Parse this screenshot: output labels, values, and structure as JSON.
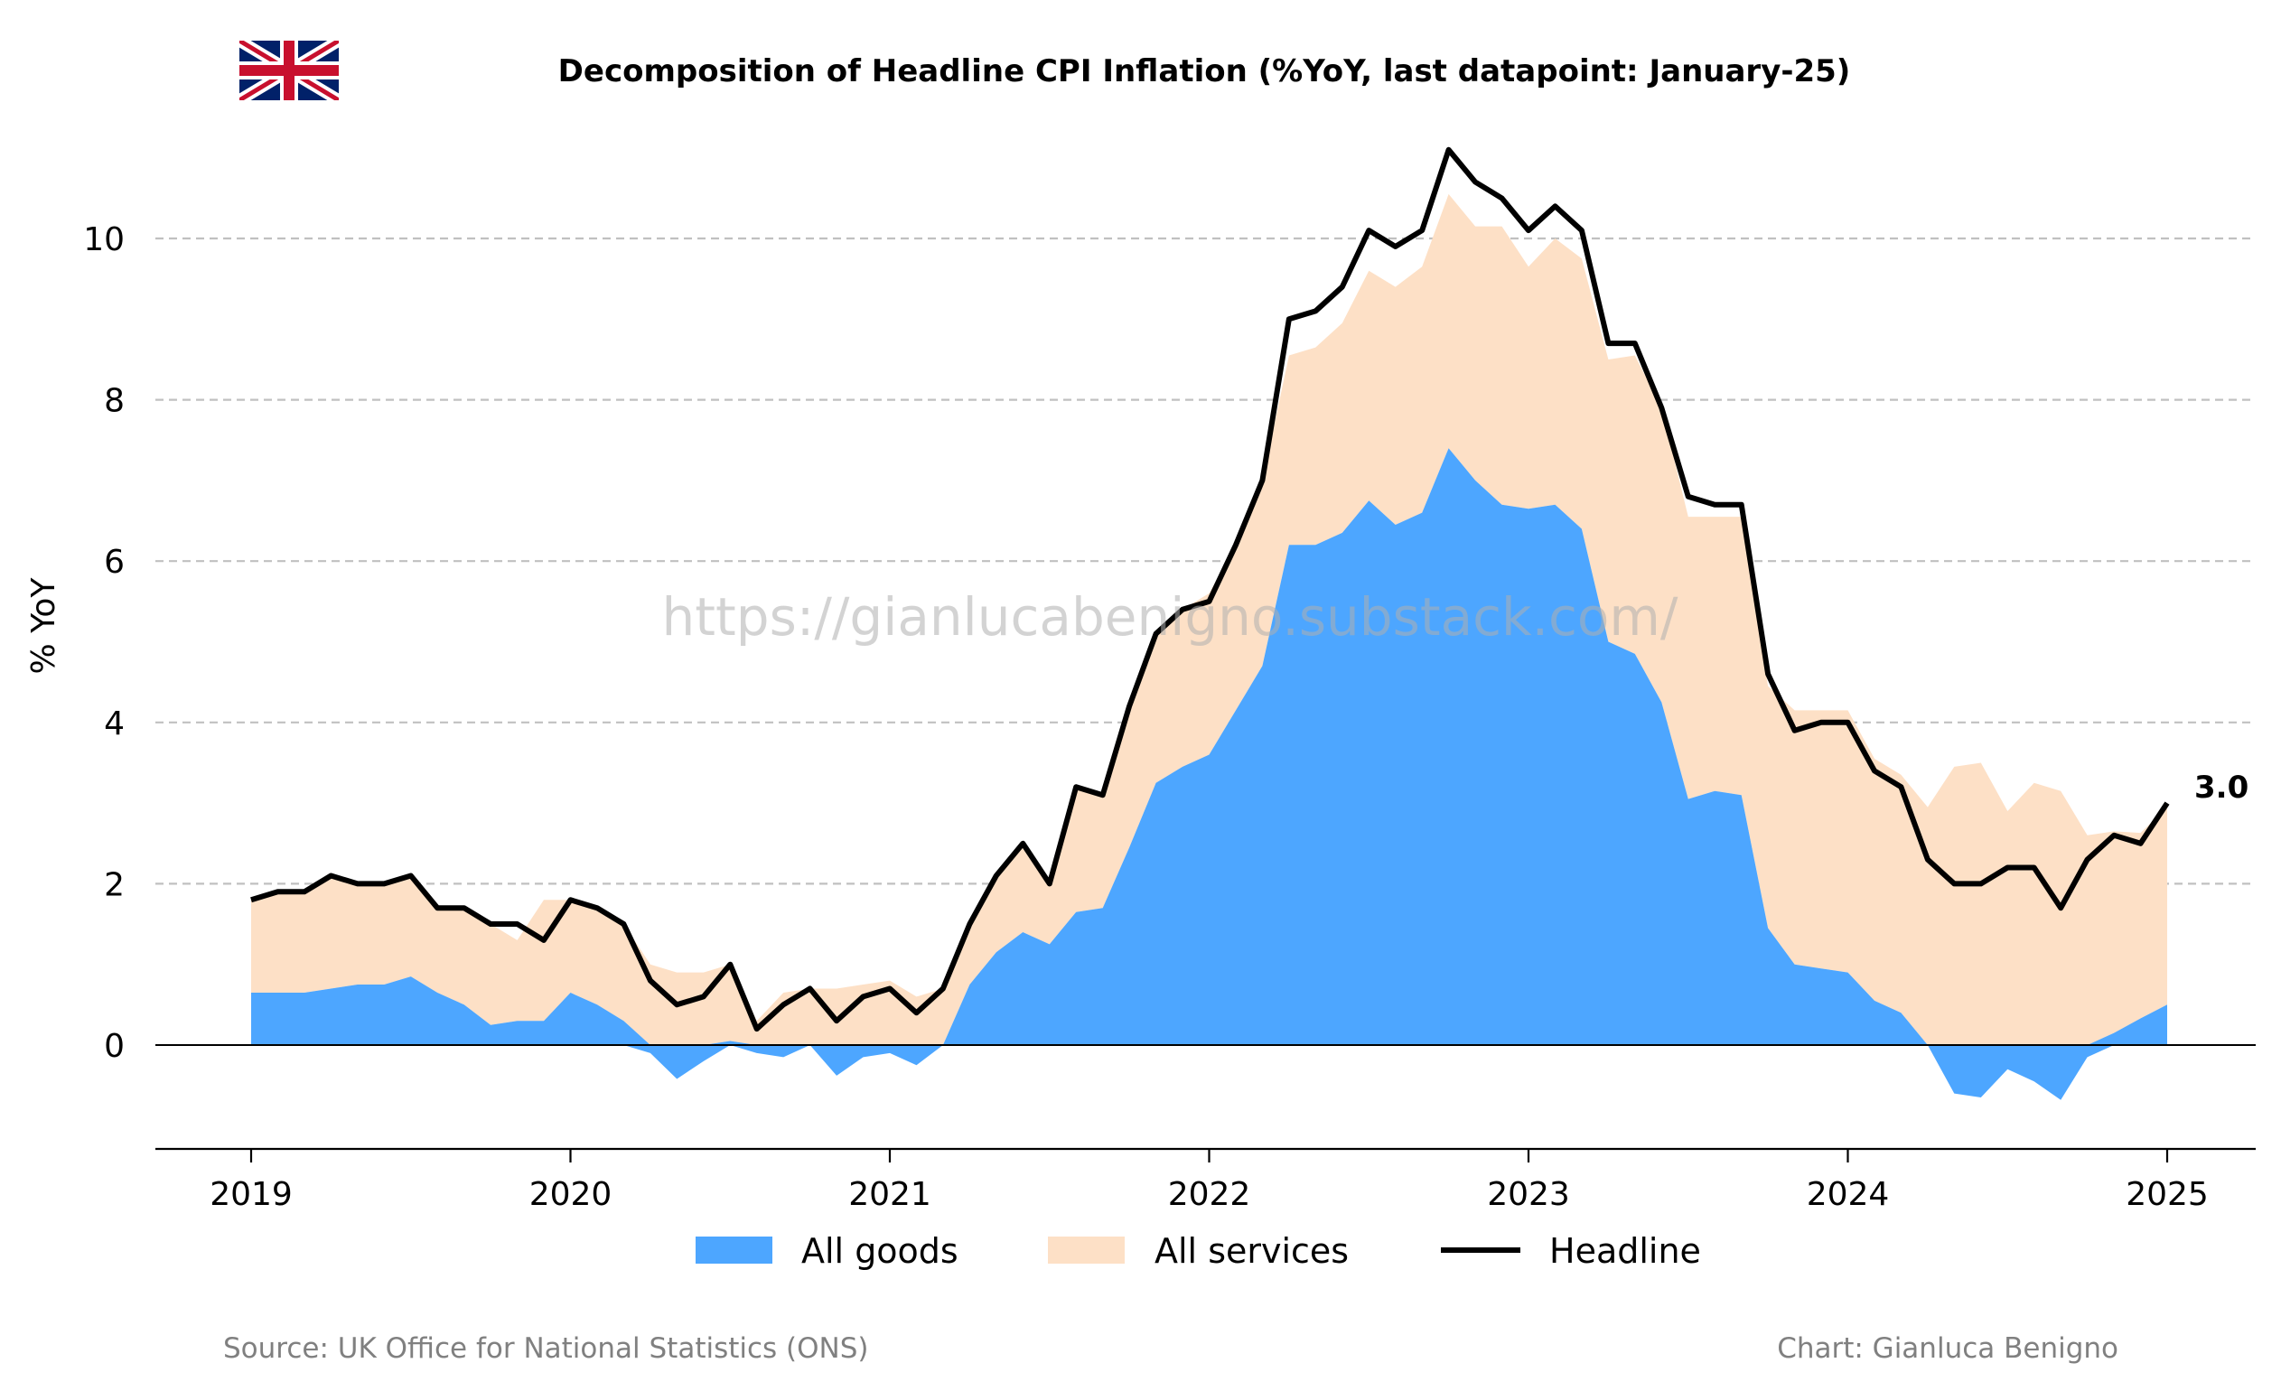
{
  "chart_data": {
    "type": "area",
    "title": "Decomposition of Headline CPI Inflation (%YoY, last datapoint: January-25)",
    "ylabel": "% YoY",
    "xlabel": "",
    "ylim": [
      -1.3,
      11.3
    ],
    "yticks": [
      0,
      2,
      4,
      6,
      8,
      10
    ],
    "xticks": [
      "2019",
      "2020",
      "2021",
      "2022",
      "2023",
      "2024",
      "2025"
    ],
    "grid": "horizontal dashed",
    "legend_position": "bottom-center",
    "start_month": "2019-01",
    "x": [
      "2019-01",
      "2019-02",
      "2019-03",
      "2019-04",
      "2019-05",
      "2019-06",
      "2019-07",
      "2019-08",
      "2019-09",
      "2019-10",
      "2019-11",
      "2019-12",
      "2020-01",
      "2020-02",
      "2020-03",
      "2020-04",
      "2020-05",
      "2020-06",
      "2020-07",
      "2020-08",
      "2020-09",
      "2020-10",
      "2020-11",
      "2020-12",
      "2021-01",
      "2021-02",
      "2021-03",
      "2021-04",
      "2021-05",
      "2021-06",
      "2021-07",
      "2021-08",
      "2021-09",
      "2021-10",
      "2021-11",
      "2021-12",
      "2022-01",
      "2022-02",
      "2022-03",
      "2022-04",
      "2022-05",
      "2022-06",
      "2022-07",
      "2022-08",
      "2022-09",
      "2022-10",
      "2022-11",
      "2022-12",
      "2023-01",
      "2023-02",
      "2023-03",
      "2023-04",
      "2023-05",
      "2023-06",
      "2023-07",
      "2023-08",
      "2023-09",
      "2023-10",
      "2023-11",
      "2023-12",
      "2024-01",
      "2024-02",
      "2024-03",
      "2024-04",
      "2024-05",
      "2024-06",
      "2024-07",
      "2024-08",
      "2024-09",
      "2024-10",
      "2024-11",
      "2024-12",
      "2025-01"
    ],
    "series": [
      {
        "name": "All goods",
        "color": "#4da6ff",
        "values": [
          0.65,
          0.65,
          0.65,
          0.7,
          0.75,
          0.75,
          0.85,
          0.65,
          0.5,
          0.25,
          0.3,
          0.3,
          0.65,
          0.5,
          0.3,
          -0.1,
          -0.42,
          -0.2,
          0.05,
          -0.1,
          -0.15,
          0.0,
          -0.38,
          -0.15,
          -0.1,
          -0.25,
          0.0,
          0.75,
          1.15,
          1.4,
          1.25,
          1.65,
          1.7,
          2.45,
          3.25,
          3.45,
          3.6,
          4.15,
          4.7,
          6.2,
          6.2,
          6.35,
          6.75,
          6.45,
          6.6,
          7.4,
          7.0,
          6.7,
          6.65,
          6.7,
          6.4,
          5.0,
          4.85,
          4.25,
          3.05,
          3.15,
          3.1,
          1.45,
          1.0,
          0.95,
          0.9,
          0.55,
          0.4,
          0.0,
          -0.6,
          -0.65,
          -0.3,
          -0.45,
          -0.68,
          -0.15,
          0.15,
          0.33,
          0.5
        ]
      },
      {
        "name": "All services",
        "color": "#fde0c6",
        "values": [
          1.15,
          1.25,
          1.25,
          1.4,
          1.25,
          1.25,
          1.25,
          1.05,
          1.2,
          1.25,
          1.0,
          1.5,
          1.15,
          1.2,
          1.2,
          1.0,
          0.9,
          0.9,
          0.95,
          0.3,
          0.65,
          0.7,
          0.7,
          0.75,
          0.8,
          0.6,
          0.7,
          0.75,
          0.95,
          1.1,
          0.75,
          1.55,
          1.4,
          1.7,
          1.85,
          1.95,
          2.0,
          2.05,
          2.3,
          2.35,
          2.45,
          2.6,
          2.85,
          2.95,
          3.05,
          3.15,
          3.15,
          3.45,
          3.0,
          3.3,
          3.35,
          3.5,
          3.7,
          3.65,
          3.5,
          3.4,
          3.45,
          3.0,
          3.15,
          3.2,
          3.25,
          3.0,
          2.95,
          2.95,
          3.45,
          3.5,
          2.9,
          3.25,
          3.15,
          2.6,
          2.5,
          2.3,
          2.45
        ]
      },
      {
        "name": "Headline",
        "color": "#000000",
        "values": [
          1.8,
          1.9,
          1.9,
          2.1,
          2.0,
          2.0,
          2.1,
          1.7,
          1.7,
          1.5,
          1.5,
          1.3,
          1.8,
          1.7,
          1.5,
          0.8,
          0.5,
          0.6,
          1.0,
          0.2,
          0.5,
          0.7,
          0.3,
          0.6,
          0.7,
          0.4,
          0.7,
          1.5,
          2.1,
          2.5,
          2.0,
          3.2,
          3.1,
          4.2,
          5.1,
          5.4,
          5.5,
          6.2,
          7.0,
          9.0,
          9.1,
          9.4,
          10.1,
          9.9,
          10.1,
          11.1,
          10.7,
          10.5,
          10.1,
          10.4,
          10.1,
          8.7,
          8.7,
          7.9,
          6.8,
          6.7,
          6.7,
          4.6,
          3.9,
          4.0,
          4.0,
          3.4,
          3.2,
          2.3,
          2.0,
          2.0,
          2.2,
          2.2,
          1.7,
          2.3,
          2.6,
          2.5,
          3.0
        ]
      }
    ],
    "end_label": "3.0",
    "watermark": "https://gianlucabenigno.substack.com/",
    "source": "Source: UK Office for National Statistics (ONS)",
    "credit": "Chart: Gianluca Benigno"
  }
}
